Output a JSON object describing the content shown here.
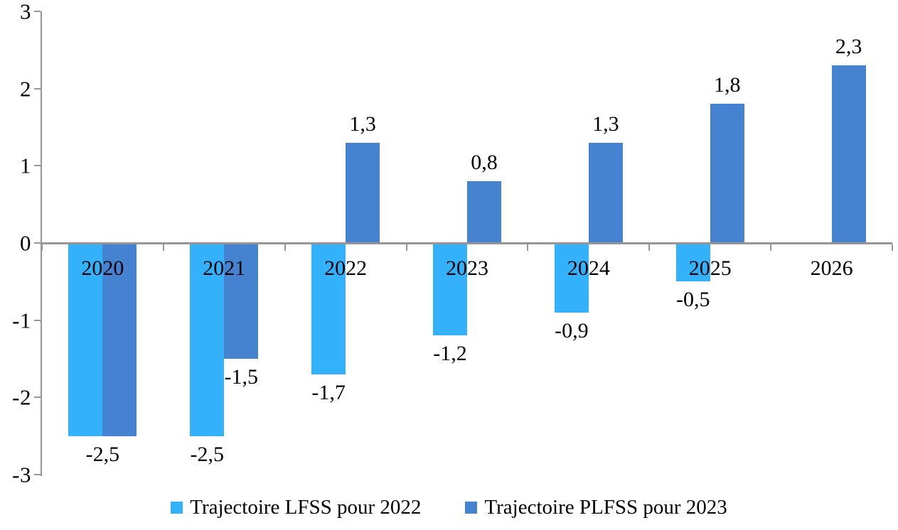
{
  "chart_data": {
    "type": "bar",
    "title": "",
    "xlabel": "",
    "ylabel": "",
    "background": "#FFFFFF",
    "axis_color": "#969696",
    "text_color": "#000000",
    "grid": false,
    "legend_position": "bottom",
    "decimal_separator": ",",
    "categories": [
      "2020",
      "2021",
      "2022",
      "2023",
      "2024",
      "2025",
      "2026"
    ],
    "series": [
      {
        "key": "lfss",
        "name": "Trajectoire LFSS pour 2022",
        "color": "#33B1FA",
        "values": [
          -2.5,
          -2.5,
          -1.7,
          -1.2,
          -0.9,
          -0.5,
          null
        ]
      },
      {
        "key": "plfss",
        "name": "Trajectoire PLFSS pour 2023",
        "color": "#4583D1",
        "values": [
          -2.5,
          -1.5,
          1.3,
          0.8,
          1.3,
          1.8,
          2.3
        ]
      }
    ],
    "value_labels": [
      {
        "category": "2020",
        "series": 0,
        "text": "-2,5",
        "anchor": "group"
      },
      {
        "category": "2021",
        "series": 0,
        "text": "-2,5"
      },
      {
        "category": "2021",
        "series": 1,
        "text": "-1,5"
      },
      {
        "category": "2022",
        "series": 0,
        "text": "-1,7"
      },
      {
        "category": "2022",
        "series": 1,
        "text": "1,3"
      },
      {
        "category": "2023",
        "series": 0,
        "text": "-1,2"
      },
      {
        "category": "2023",
        "series": 1,
        "text": "0,8"
      },
      {
        "category": "2024",
        "series": 0,
        "text": "-0,9"
      },
      {
        "category": "2024",
        "series": 1,
        "text": "1,3"
      },
      {
        "category": "2025",
        "series": 0,
        "text": "-0,5"
      },
      {
        "category": "2025",
        "series": 1,
        "text": "1,8"
      },
      {
        "category": "2026",
        "series": 1,
        "text": "2,3"
      }
    ],
    "y_axis": {
      "min": -3,
      "max": 3,
      "tick_values": [
        3,
        2,
        1,
        0,
        -1,
        -2,
        -3
      ],
      "tick_labels": [
        "3",
        "2",
        "1",
        "0",
        "-1",
        "-2",
        "-3"
      ]
    }
  }
}
